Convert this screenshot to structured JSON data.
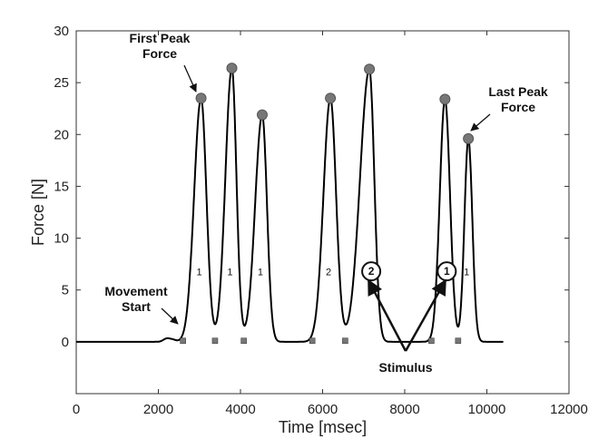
{
  "chart_data": {
    "type": "line",
    "title": "",
    "xlabel": "Time [msec]",
    "ylabel": "Force [N]",
    "xlim": [
      0,
      12000
    ],
    "ylim": [
      -5,
      30
    ],
    "x_ticks": [
      0,
      2000,
      4000,
      6000,
      8000,
      10000,
      12000
    ],
    "y_ticks": [
      0,
      5,
      10,
      15,
      20,
      25,
      30
    ],
    "grid": false,
    "series": [
      {
        "color": "#000000",
        "x_range": [
          0,
          10400
        ],
        "baseline": 0,
        "bumps": [
          {
            "x": 2200,
            "y": 0.3
          },
          {
            "x": 2350,
            "y": 0.2
          }
        ],
        "peaks": [
          {
            "start": 2600,
            "x": 3040,
            "y": 23.5,
            "end": 3380,
            "label": "1"
          },
          {
            "start": 3380,
            "x": 3790,
            "y": 26.4,
            "end": 4080,
            "label": "1"
          },
          {
            "start": 4080,
            "x": 4530,
            "y": 21.9,
            "end": 4830,
            "label": "1"
          },
          {
            "start": 5750,
            "x": 6190,
            "y": 23.5,
            "end": 6550,
            "label": "2"
          },
          {
            "start": 6550,
            "x": 7140,
            "y": 26.3,
            "end": 7450,
            "label": "2",
            "circled": true
          },
          {
            "start": 8650,
            "x": 8980,
            "y": 23.4,
            "end": 9300,
            "label": "1",
            "circled": true
          },
          {
            "start": 9300,
            "x": 9550,
            "y": 19.6,
            "end": 9800,
            "label": "1"
          }
        ]
      }
    ],
    "annotations": {
      "first_peak": "First Peak\nForce",
      "last_peak": "Last Peak\nForce",
      "movement_start": "Movement\nStart",
      "stimulus": "Stimulus"
    }
  }
}
